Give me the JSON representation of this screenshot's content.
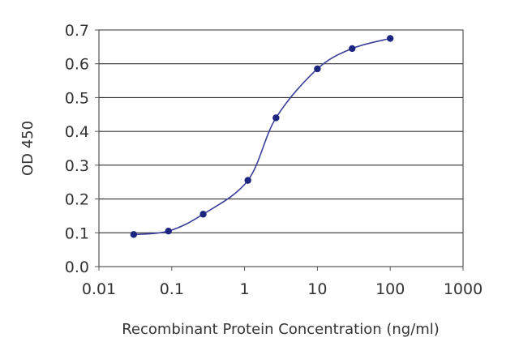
{
  "chart_data": {
    "type": "line",
    "title": "",
    "xlabel": "Recombinant Protein Concentration (ng/ml)",
    "ylabel": "OD 450",
    "x_scale": "log",
    "xlim": [
      0.01,
      1000
    ],
    "ylim": [
      0.0,
      0.7
    ],
    "x_ticks": [
      "0.01",
      "0.1",
      "1",
      "10",
      "100",
      "1000"
    ],
    "y_ticks": [
      "0.0",
      "0.1",
      "0.2",
      "0.3",
      "0.4",
      "0.5",
      "0.6",
      "0.7"
    ],
    "grid": "horizontal",
    "legend": "none",
    "series": [
      {
        "x": [
          0.03,
          0.09,
          0.27,
          1.11,
          2.7,
          10,
          30,
          100
        ],
        "y": [
          0.095,
          0.105,
          0.155,
          0.255,
          0.44,
          0.585,
          0.645,
          0.675
        ]
      }
    ],
    "colors": {
      "line": "#3a3f9a",
      "marker": "#1c2580",
      "grid": "#333333",
      "frame": "#555555",
      "background": "#ffffff"
    }
  }
}
